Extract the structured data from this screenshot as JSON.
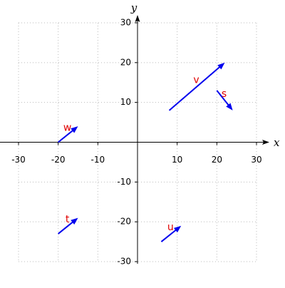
{
  "chart_data": {
    "type": "vector",
    "x_label": "x",
    "y_label": "y",
    "xlim": [
      -30,
      30
    ],
    "ylim": [
      -30,
      30
    ],
    "xticks": [
      -30,
      -20,
      -10,
      10,
      20,
      30
    ],
    "yticks": [
      -30,
      -20,
      -10,
      10,
      20,
      30
    ],
    "grid": true,
    "color": "#0000ee",
    "label_color": "#e00000",
    "vectors": [
      {
        "name": "v",
        "x0": 8,
        "y0": 8,
        "x1": 22,
        "y1": 20
      },
      {
        "name": "s",
        "x0": 20,
        "y0": 13,
        "x1": 24,
        "y1": 8
      },
      {
        "name": "w",
        "x0": -20,
        "y0": 0,
        "x1": -15,
        "y1": 4
      },
      {
        "name": "t",
        "x0": -20,
        "y0": -23,
        "x1": -15,
        "y1": -19
      },
      {
        "name": "u",
        "x0": 6,
        "y0": -25,
        "x1": 11,
        "y1": -21
      }
    ]
  }
}
